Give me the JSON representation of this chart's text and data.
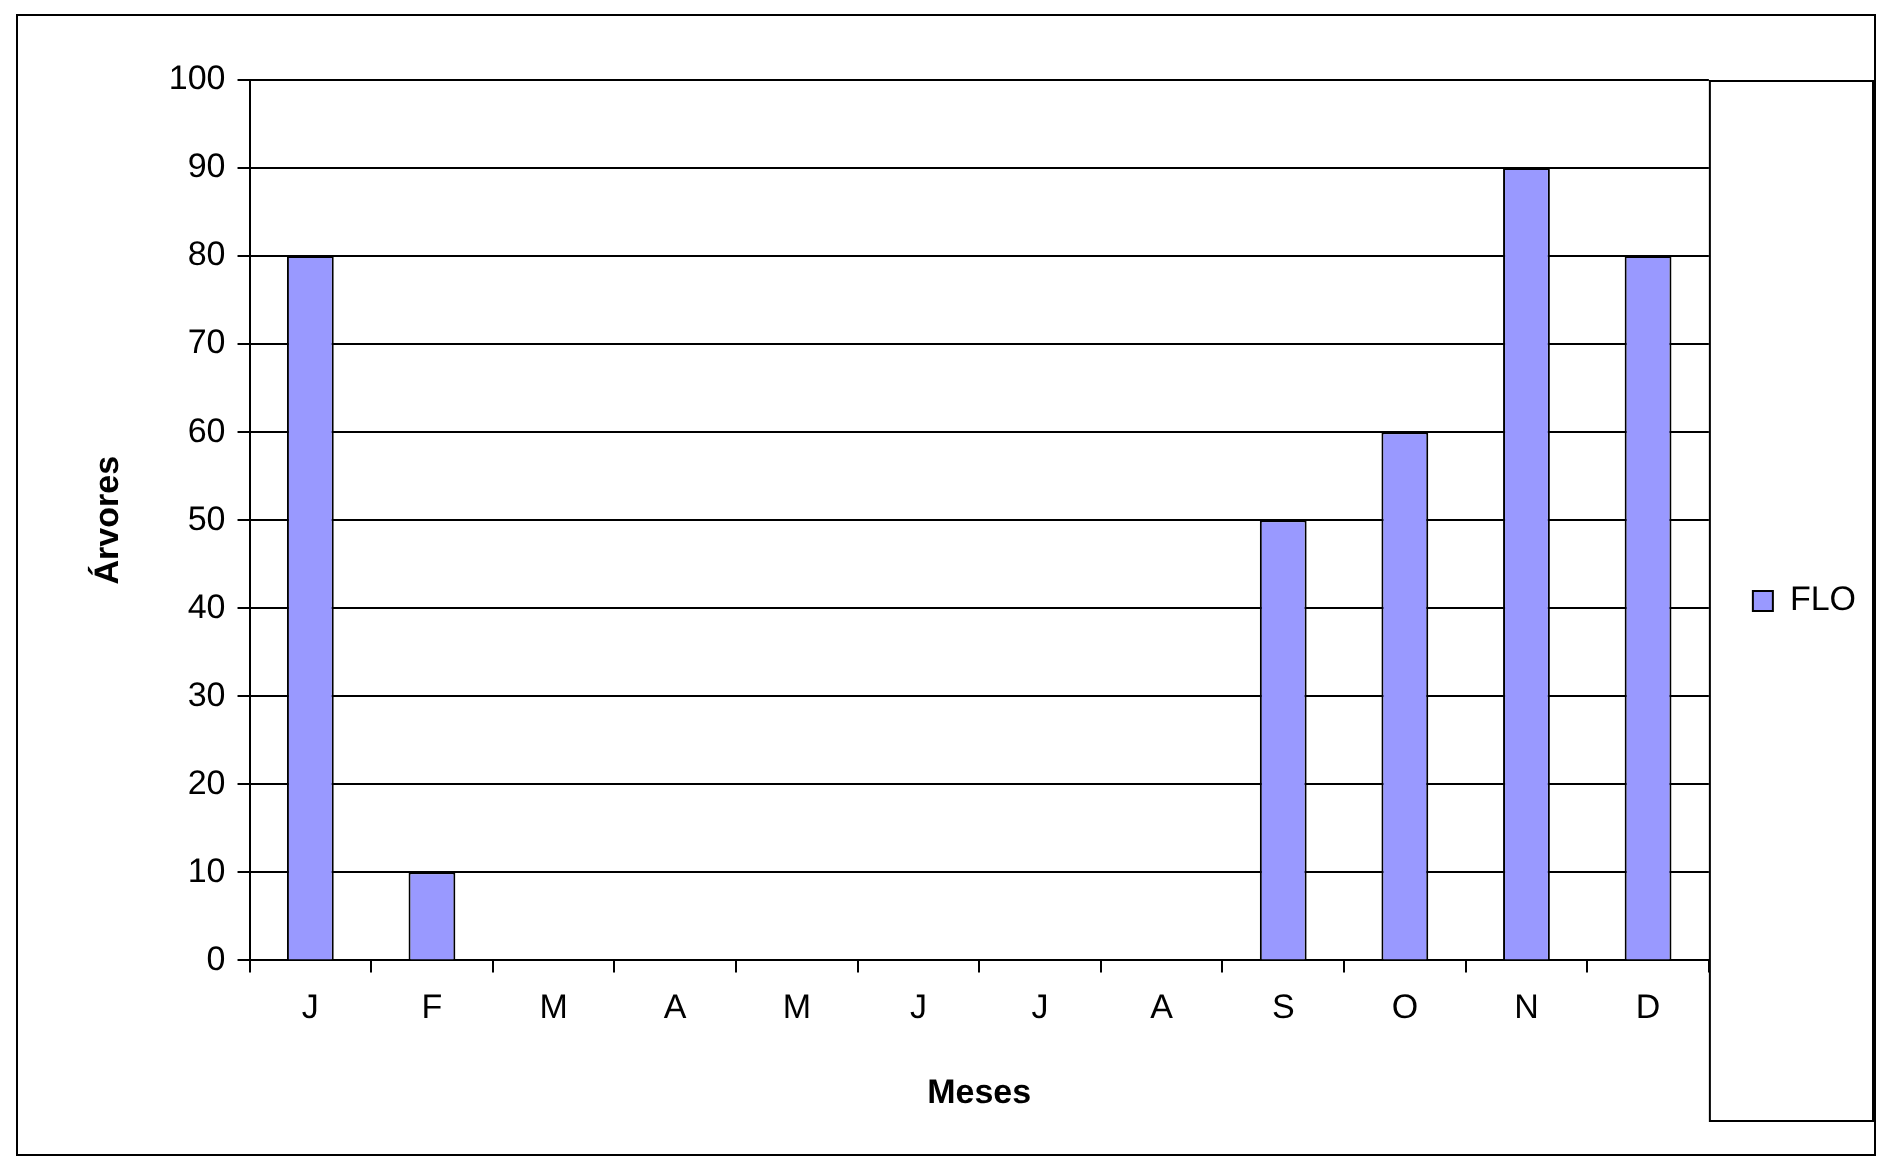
{
  "chart_data": {
    "type": "bar",
    "xlabel": "Meses",
    "ylabel": "Árvores",
    "categories": [
      "J",
      "F",
      "M",
      "A",
      "M",
      "J",
      "J",
      "A",
      "S",
      "O",
      "N",
      "D"
    ],
    "series": [
      {
        "name": "FLO",
        "color": "#9999ff",
        "values": [
          80,
          10,
          0,
          0,
          0,
          0,
          0,
          0,
          50,
          60,
          90,
          80
        ]
      }
    ],
    "ylim": [
      0,
      100
    ],
    "yticks": [
      0,
      10,
      20,
      30,
      40,
      50,
      60,
      70,
      80,
      90,
      100
    ],
    "grid": "y",
    "legend": "right"
  }
}
